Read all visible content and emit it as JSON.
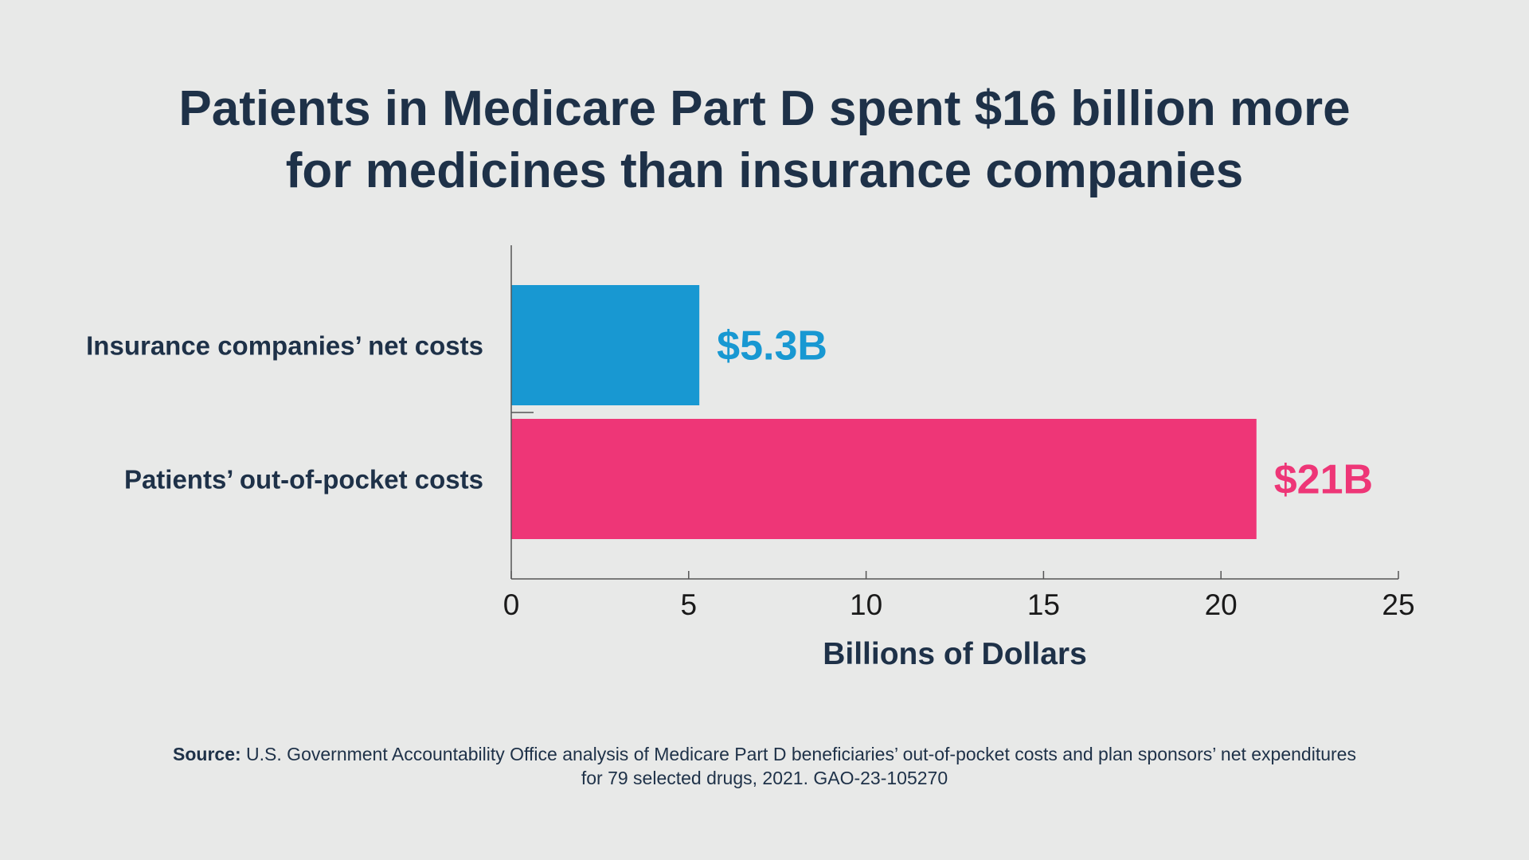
{
  "chart_data": {
    "type": "bar",
    "orientation": "horizontal",
    "title_lines": [
      "Patients in Medicare Part D spent $16 billion more",
      "for medicines than insurance companies"
    ],
    "categories": [
      "Insurance companies’ net costs",
      "Patients’ out-of-pocket costs"
    ],
    "values": [
      5.3,
      21
    ],
    "data_labels": [
      "$5.3B",
      "$21B"
    ],
    "colors": [
      "#1898d2",
      "#ee3677"
    ],
    "xlabel": "Billions of Dollars",
    "ylabel": "",
    "xlim": [
      0,
      25
    ],
    "xticks": [
      0,
      5,
      10,
      15,
      20,
      25
    ],
    "grid": false,
    "legend": "none"
  },
  "source": {
    "label": "Source:",
    "text": " U.S. Government Accountability Office analysis of Medicare Part D beneficiaries’ out-of-pocket costs and plan sponsors’ net expenditures for 79 selected drugs, 2021. GAO-23-105270"
  }
}
